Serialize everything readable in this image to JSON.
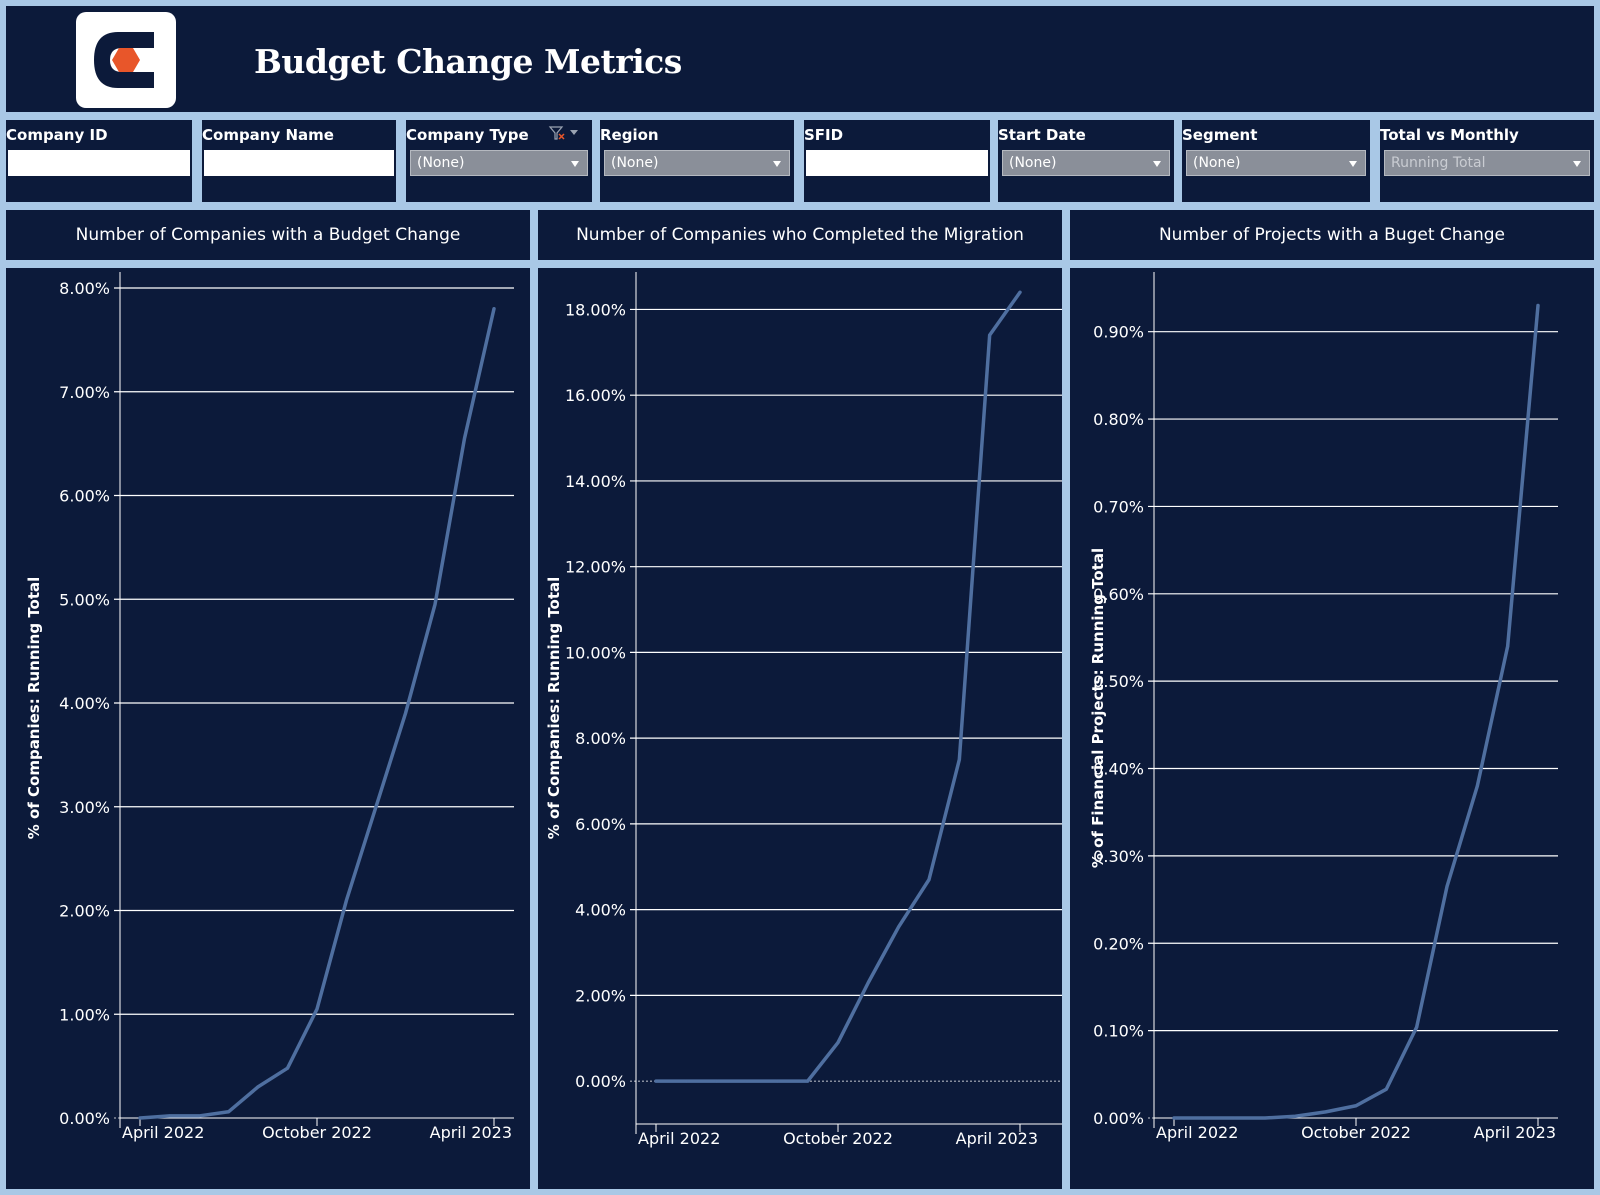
{
  "header": {
    "title": "Budget Change Metrics",
    "logo_icon": "hexagon-c-logo",
    "colors": {
      "logo_orange": "#e8562a",
      "logo_bg": "#ffffff",
      "logo_dark": "#0c1a3a"
    }
  },
  "filters": [
    {
      "label": "Company ID",
      "kind": "text",
      "value": ""
    },
    {
      "label": "Company Name",
      "kind": "text",
      "value": ""
    },
    {
      "label": "Company Type",
      "kind": "select",
      "value": "(None)",
      "icon": "clear-filter-icon"
    },
    {
      "label": "Region",
      "kind": "select",
      "value": "(None)"
    },
    {
      "label": "SFID",
      "kind": "text",
      "value": ""
    },
    {
      "label": "Start Date",
      "kind": "select",
      "value": "(None)"
    },
    {
      "label": "Segment",
      "kind": "select",
      "value": "(None)"
    },
    {
      "label": "Total vs Monthly",
      "kind": "select",
      "value": "Running Total",
      "disabled": true
    }
  ],
  "theme": {
    "background": "#0c1a3a",
    "border": "#a9c8e6",
    "line": "#4f6fa0",
    "gridline": "#ffffff",
    "text": "#ffffff"
  },
  "chart_data": [
    {
      "type": "line",
      "title": "Number of Companies with a Budget Change",
      "ylabel": "% of Companies: Running Total",
      "xlabel": "",
      "x_ticks": [
        "April 2022",
        "October 2022",
        "April 2023"
      ],
      "x": [
        "Apr 2022",
        "May 2022",
        "Jun 2022",
        "Jul 2022",
        "Aug 2022",
        "Sep 2022",
        "Oct 2022",
        "Nov 2022",
        "Dec 2022",
        "Jan 2023",
        "Feb 2023",
        "Mar 2023",
        "Apr 2023"
      ],
      "y_ticks": [
        "0.00%",
        "1.00%",
        "2.00%",
        "3.00%",
        "4.00%",
        "5.00%",
        "6.00%",
        "7.00%",
        "8.00%"
      ],
      "ylim": [
        0,
        8
      ],
      "series": [
        {
          "values": [
            0.0,
            0.02,
            0.02,
            0.06,
            0.3,
            0.48,
            1.05,
            2.1,
            3.0,
            3.9,
            4.95,
            6.55,
            7.8
          ]
        }
      ]
    },
    {
      "type": "line",
      "title": "Number of Companies who Completed the Migration",
      "ylabel": "% of Companies: Running Total",
      "xlabel": "",
      "x_ticks": [
        "April 2022",
        "October 2022",
        "April 2023"
      ],
      "x": [
        "Apr 2022",
        "May 2022",
        "Jun 2022",
        "Jul 2022",
        "Aug 2022",
        "Sep 2022",
        "Oct 2022",
        "Nov 2022",
        "Dec 2022",
        "Jan 2023",
        "Feb 2023",
        "Mar 2023",
        "Apr 2023"
      ],
      "y_ticks": [
        "0.00%",
        "2.00%",
        "4.00%",
        "6.00%",
        "8.00%",
        "10.00%",
        "12.00%",
        "14.00%",
        "16.00%",
        "18.00%"
      ],
      "ylim": [
        -1,
        18.5
      ],
      "series": [
        {
          "values": [
            0.0,
            0.0,
            0.0,
            0.0,
            0.0,
            0.0,
            0.9,
            2.3,
            3.6,
            4.7,
            7.5,
            17.4,
            18.4
          ]
        }
      ]
    },
    {
      "type": "line",
      "title": "Number of Projects with a Buget Change",
      "ylabel": "% of Financial Projects: Running Total",
      "xlabel": "",
      "x_ticks": [
        "April 2022",
        "October 2022",
        "April 2023"
      ],
      "x": [
        "Apr 2022",
        "May 2022",
        "Jun 2022",
        "Jul 2022",
        "Aug 2022",
        "Sep 2022",
        "Oct 2022",
        "Nov 2022",
        "Dec 2022",
        "Jan 2023",
        "Feb 2023",
        "Mar 2023",
        "Apr 2023"
      ],
      "y_ticks": [
        "0.00%",
        "0.10%",
        "0.20%",
        "0.30%",
        "0.40%",
        "0.50%",
        "0.60%",
        "0.70%",
        "0.80%",
        "0.90%"
      ],
      "ylim": [
        0,
        0.95
      ],
      "series": [
        {
          "values": [
            0.0,
            0.0,
            0.0,
            0.0,
            0.002,
            0.007,
            0.014,
            0.033,
            0.104,
            0.265,
            0.38,
            0.54,
            0.93
          ]
        }
      ]
    }
  ]
}
